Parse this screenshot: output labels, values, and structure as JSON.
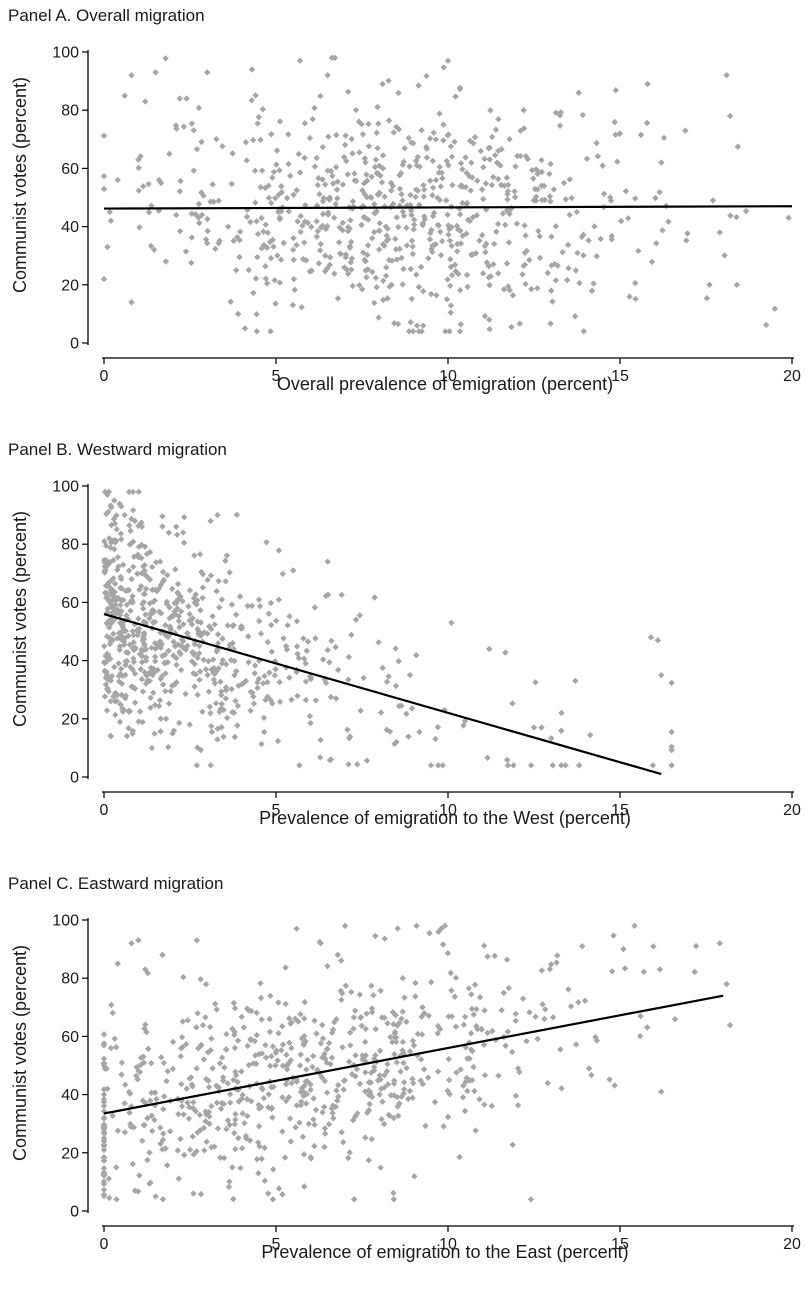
{
  "chart_data": [
    {
      "type": "scatter",
      "title": "Panel A. Overall migration",
      "xlabel": "Overall prevalence of emigration (percent)",
      "ylabel": "Communist votes (percent)",
      "xlim": [
        0,
        20
      ],
      "ylim": [
        0,
        100
      ],
      "xticks": [
        0,
        5,
        10,
        15,
        20
      ],
      "yticks": [
        0,
        20,
        40,
        60,
        80,
        100
      ],
      "grid": false,
      "marker_color": "#a6a6a6",
      "line_color": "#000000",
      "fit_line": {
        "x": [
          0,
          20
        ],
        "y": [
          46.2,
          47.0
        ]
      },
      "x_dist": {
        "mean": 8.7,
        "sd": 3.6,
        "min": 0,
        "max": 20
      },
      "y_dist": {
        "mean": 46,
        "sd": 20,
        "min": 4,
        "max": 98
      },
      "point_count": 720,
      "points": [
        [
          0.1,
          33
        ],
        [
          0.2,
          42
        ],
        [
          0.4,
          56
        ],
        [
          0.6,
          85
        ],
        [
          0.8,
          14
        ],
        [
          0.8,
          92
        ],
        [
          1.0,
          63
        ],
        [
          1.2,
          83
        ],
        [
          1.5,
          93
        ],
        [
          1.6,
          56
        ],
        [
          1.8,
          28
        ],
        [
          1.9,
          65
        ],
        [
          2.1,
          44
        ],
        [
          2.2,
          84
        ],
        [
          2.4,
          84
        ],
        [
          3.0,
          93
        ],
        [
          3.9,
          10
        ],
        [
          4.1,
          5
        ],
        [
          4.3,
          94
        ],
        [
          5.7,
          97
        ],
        [
          6.5,
          92
        ],
        [
          8.1,
          89
        ],
        [
          9.1,
          6
        ],
        [
          10.0,
          97
        ],
        [
          11.2,
          8
        ],
        [
          12.2,
          80
        ],
        [
          13.0,
          18
        ],
        [
          13.8,
          86
        ],
        [
          15.0,
          72
        ],
        [
          15.8,
          89
        ],
        [
          16.2,
          62
        ],
        [
          16.9,
          73
        ],
        [
          17.6,
          20
        ],
        [
          17.9,
          38
        ],
        [
          18.1,
          92
        ],
        [
          18.2,
          78
        ],
        [
          18.4,
          20
        ],
        [
          19.9,
          43
        ]
      ]
    },
    {
      "type": "scatter",
      "title": "Panel B. Westward migration",
      "xlabel": "Prevalence of emigration to the West (percent)",
      "ylabel": "Communist votes (percent)",
      "xlim": [
        0,
        20
      ],
      "ylim": [
        0,
        100
      ],
      "xticks": [
        0,
        5,
        10,
        15,
        20
      ],
      "yticks": [
        0,
        20,
        40,
        60,
        80,
        100
      ],
      "grid": false,
      "marker_color": "#a6a6a6",
      "line_color": "#000000",
      "fit_line": {
        "x": [
          0,
          16.2
        ],
        "y": [
          56,
          1
        ]
      },
      "point_count": 720,
      "points": [
        [
          0.1,
          97
        ],
        [
          0.3,
          95
        ],
        [
          0.5,
          93
        ],
        [
          0.6,
          90
        ],
        [
          0.9,
          88
        ],
        [
          1.1,
          86
        ],
        [
          0.2,
          14
        ],
        [
          3.3,
          90
        ],
        [
          3.1,
          88
        ],
        [
          2.1,
          86
        ],
        [
          2.3,
          84
        ],
        [
          2.7,
          4
        ],
        [
          5.5,
          71
        ],
        [
          6.5,
          74
        ],
        [
          6.6,
          6
        ],
        [
          8.5,
          12
        ],
        [
          9.9,
          23
        ],
        [
          10.1,
          53
        ],
        [
          11.2,
          44
        ],
        [
          12.5,
          17
        ],
        [
          13.3,
          22
        ],
        [
          13.7,
          33
        ],
        [
          15.9,
          48
        ],
        [
          16.1,
          47
        ],
        [
          16.2,
          35
        ]
      ]
    },
    {
      "type": "scatter",
      "title": "Panel C. Eastward migration",
      "xlabel": "Prevalence of emigration to the East (percent)",
      "ylabel": "Communist votes (percent)",
      "xlim": [
        0,
        20
      ],
      "ylim": [
        0,
        100
      ],
      "xticks": [
        0,
        5,
        10,
        15,
        20
      ],
      "yticks": [
        0,
        20,
        40,
        60,
        80,
        100
      ],
      "grid": false,
      "marker_color": "#a6a6a6",
      "line_color": "#000000",
      "fit_line": {
        "x": [
          0,
          18
        ],
        "y": [
          33.5,
          74
        ]
      },
      "point_count": 720,
      "points": [
        [
          0.1,
          42
        ],
        [
          0.2,
          56
        ],
        [
          0.4,
          85
        ],
        [
          0.6,
          37
        ],
        [
          0.8,
          92
        ],
        [
          0.9,
          7
        ],
        [
          1.0,
          93
        ],
        [
          1.2,
          83
        ],
        [
          1.5,
          5
        ],
        [
          1.7,
          88
        ],
        [
          2.7,
          93
        ],
        [
          2.6,
          6
        ],
        [
          5.6,
          97
        ],
        [
          6.3,
          92
        ],
        [
          9.8,
          97
        ],
        [
          12.8,
          66
        ],
        [
          13.9,
          91
        ],
        [
          14.1,
          49
        ],
        [
          15.1,
          90
        ],
        [
          15.6,
          67
        ],
        [
          16.2,
          41
        ],
        [
          17.9,
          92
        ],
        [
          18.1,
          78
        ]
      ]
    }
  ]
}
